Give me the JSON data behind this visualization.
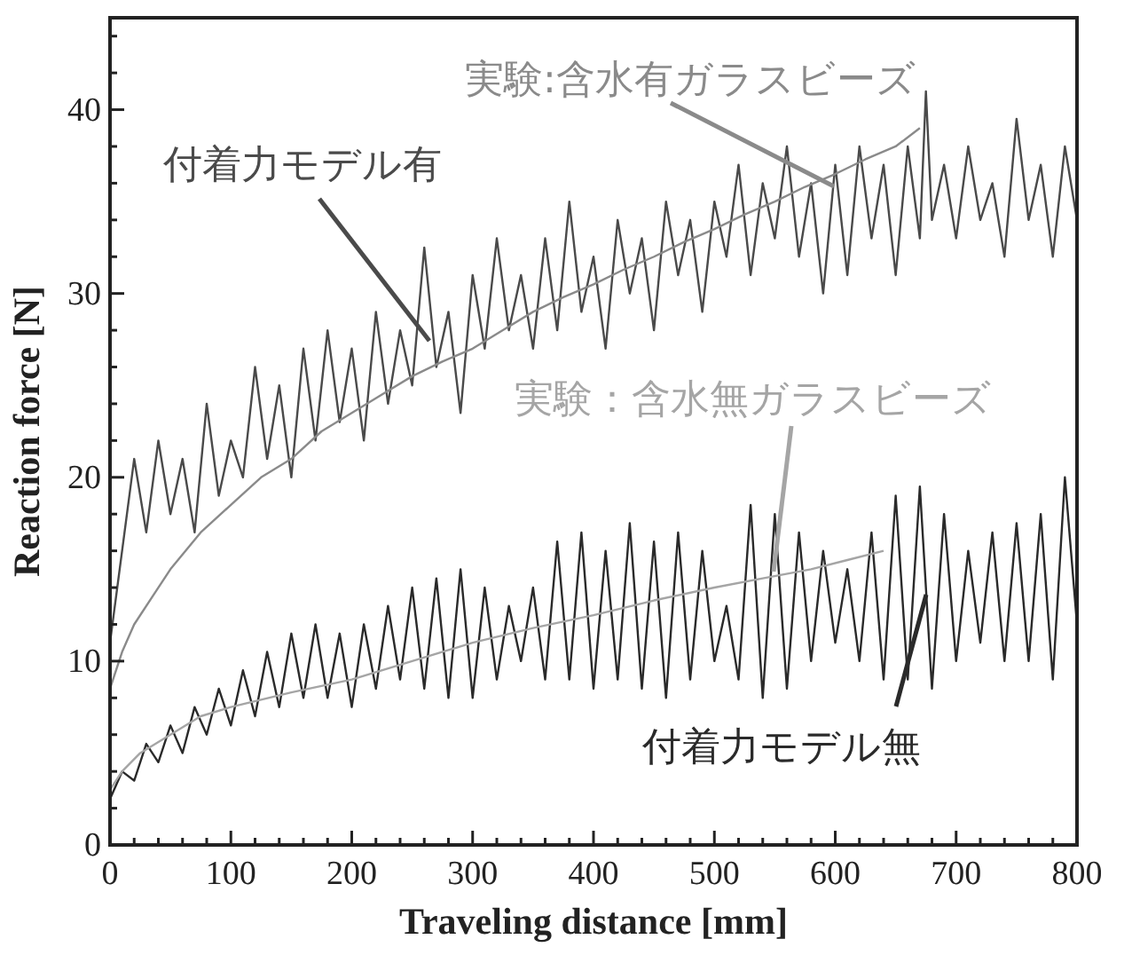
{
  "chart_data": {
    "type": "line",
    "xlabel": "Traveling distance [mm]",
    "ylabel": "Reaction force [N]",
    "xlim": [
      0,
      800
    ],
    "ylim": [
      0,
      45
    ],
    "xticks": [
      0,
      {
        "value": 20,
        "label": null
      },
      {
        "value": 40,
        "label": null
      },
      {
        "value": 60,
        "label": null
      },
      {
        "value": 80,
        "label": null
      },
      100,
      {
        "value": 120,
        "label": null
      },
      {
        "value": 140,
        "label": null
      },
      {
        "value": 160,
        "label": null
      },
      {
        "value": 180,
        "label": null
      },
      200,
      {
        "value": 220,
        "label": null
      },
      {
        "value": 240,
        "label": null
      },
      {
        "value": 260,
        "label": null
      },
      {
        "value": 280,
        "label": null
      },
      300,
      {
        "value": 320,
        "label": null
      },
      {
        "value": 340,
        "label": null
      },
      {
        "value": 360,
        "label": null
      },
      {
        "value": 380,
        "label": null
      },
      400,
      {
        "value": 420,
        "label": null
      },
      {
        "value": 440,
        "label": null
      },
      {
        "value": 460,
        "label": null
      },
      {
        "value": 480,
        "label": null
      },
      500,
      {
        "value": 520,
        "label": null
      },
      {
        "value": 540,
        "label": null
      },
      {
        "value": 560,
        "label": null
      },
      {
        "value": 580,
        "label": null
      },
      600,
      {
        "value": 620,
        "label": null
      },
      {
        "value": 640,
        "label": null
      },
      {
        "value": 660,
        "label": null
      },
      {
        "value": 680,
        "label": null
      },
      700,
      {
        "value": 720,
        "label": null
      },
      {
        "value": 740,
        "label": null
      },
      {
        "value": 760,
        "label": null
      },
      {
        "value": 780,
        "label": null
      },
      800
    ],
    "yticks": [
      0,
      {
        "value": 2,
        "label": null
      },
      {
        "value": 4,
        "label": null
      },
      {
        "value": 6,
        "label": null
      },
      {
        "value": 8,
        "label": null
      },
      10,
      {
        "value": 12,
        "label": null
      },
      {
        "value": 14,
        "label": null
      },
      {
        "value": 16,
        "label": null
      },
      {
        "value": 18,
        "label": null
      },
      20,
      {
        "value": 22,
        "label": null
      },
      {
        "value": 24,
        "label": null
      },
      {
        "value": 26,
        "label": null
      },
      {
        "value": 28,
        "label": null
      },
      30,
      {
        "value": 32,
        "label": null
      },
      {
        "value": 34,
        "label": null
      },
      {
        "value": 36,
        "label": null
      },
      {
        "value": 38,
        "label": null
      },
      40,
      {
        "value": 42,
        "label": null
      },
      {
        "value": 44,
        "label": null
      }
    ],
    "grid": false,
    "marker": "none",
    "line_style": "solid",
    "series": [
      {
        "name": "付着力モデル有",
        "color": "#4a4a4a",
        "x": [
          0,
          10,
          20,
          30,
          40,
          50,
          60,
          70,
          80,
          90,
          100,
          110,
          120,
          130,
          140,
          150,
          160,
          170,
          180,
          190,
          200,
          210,
          220,
          230,
          240,
          250,
          260,
          270,
          280,
          290,
          300,
          310,
          320,
          330,
          340,
          350,
          360,
          370,
          380,
          390,
          400,
          410,
          420,
          430,
          440,
          450,
          460,
          470,
          480,
          490,
          500,
          510,
          520,
          530,
          540,
          550,
          560,
          570,
          580,
          590,
          600,
          610,
          620,
          630,
          640,
          650,
          660,
          670,
          675,
          680,
          690,
          700,
          710,
          720,
          730,
          740,
          750,
          760,
          770,
          780,
          790,
          800
        ],
        "values": [
          11,
          16,
          21,
          17,
          22,
          18,
          21,
          17,
          24,
          19,
          22,
          20,
          26,
          21,
          25,
          20,
          27,
          22,
          28,
          23,
          27,
          22,
          29,
          24,
          28,
          25,
          32.5,
          26,
          29,
          23.5,
          31,
          27,
          33,
          28,
          31,
          27,
          33,
          28,
          35,
          29,
          32,
          27,
          34,
          30,
          33,
          28,
          35,
          31,
          34,
          29,
          35,
          32,
          37,
          31,
          36,
          33,
          38,
          32,
          36,
          30,
          37,
          31,
          38,
          33,
          37,
          31,
          38,
          33,
          41,
          34,
          37,
          33,
          38,
          34,
          36,
          32,
          39.5,
          34,
          37,
          32,
          38,
          34
        ]
      },
      {
        "name": "実験:含水有ガラスビーズ",
        "color": "#8a8a8a",
        "x": [
          0,
          10,
          20,
          35,
          50,
          75,
          100,
          125,
          150,
          175,
          200,
          225,
          250,
          275,
          300,
          325,
          350,
          375,
          400,
          425,
          450,
          475,
          500,
          525,
          550,
          575,
          600,
          625,
          650,
          670
        ],
        "values": [
          8.5,
          10.5,
          12,
          13.5,
          15,
          17,
          18.5,
          20,
          21,
          22.5,
          23.5,
          24.5,
          25.5,
          26.3,
          27,
          28,
          29,
          29.8,
          30.5,
          31.3,
          32,
          32.8,
          33.5,
          34.3,
          35,
          35.8,
          36.5,
          37.3,
          38,
          39
        ]
      },
      {
        "name": "付着力モデル無",
        "color": "#2a2a2a",
        "x": [
          0,
          10,
          20,
          30,
          40,
          50,
          60,
          70,
          80,
          90,
          100,
          110,
          120,
          130,
          140,
          150,
          160,
          170,
          180,
          190,
          200,
          210,
          220,
          230,
          240,
          250,
          260,
          270,
          280,
          290,
          300,
          310,
          320,
          330,
          340,
          350,
          360,
          370,
          380,
          390,
          400,
          410,
          420,
          430,
          440,
          450,
          460,
          470,
          480,
          490,
          500,
          510,
          520,
          530,
          540,
          550,
          560,
          570,
          580,
          590,
          600,
          610,
          620,
          630,
          640,
          650,
          660,
          670,
          680,
          690,
          700,
          710,
          720,
          730,
          740,
          750,
          760,
          770,
          780,
          790,
          800
        ],
        "values": [
          2.5,
          4,
          3.5,
          5.5,
          4.5,
          6.5,
          5,
          7.5,
          6,
          8.5,
          6.5,
          9.5,
          7,
          10.5,
          7.5,
          11.5,
          8,
          12,
          8,
          11.5,
          7.5,
          12,
          8.5,
          13,
          9,
          14,
          8.5,
          14.5,
          8,
          15,
          8,
          14,
          9,
          13,
          10,
          14,
          9,
          16.5,
          9,
          17,
          8.5,
          16,
          9,
          17.5,
          8.5,
          16.5,
          8,
          17,
          9,
          16,
          10,
          13,
          9,
          18.5,
          8,
          18,
          8.5,
          17,
          10,
          16,
          11,
          15,
          10,
          17,
          9,
          19,
          9,
          19.5,
          8.5,
          18,
          10,
          16,
          11,
          17,
          10,
          17.5,
          10,
          18,
          9,
          20,
          12
        ]
      },
      {
        "name": "実験：含水無ガラスビーズ",
        "color": "#a5a5a5",
        "x": [
          0,
          10,
          25,
          50,
          75,
          100,
          150,
          200,
          250,
          300,
          350,
          400,
          450,
          500,
          540,
          580,
          610,
          640
        ],
        "values": [
          3,
          4,
          5,
          6,
          7,
          7.5,
          8.3,
          9,
          10,
          11,
          11.8,
          12.5,
          13.3,
          14,
          14.5,
          15,
          15.5,
          16
        ]
      }
    ]
  }
}
